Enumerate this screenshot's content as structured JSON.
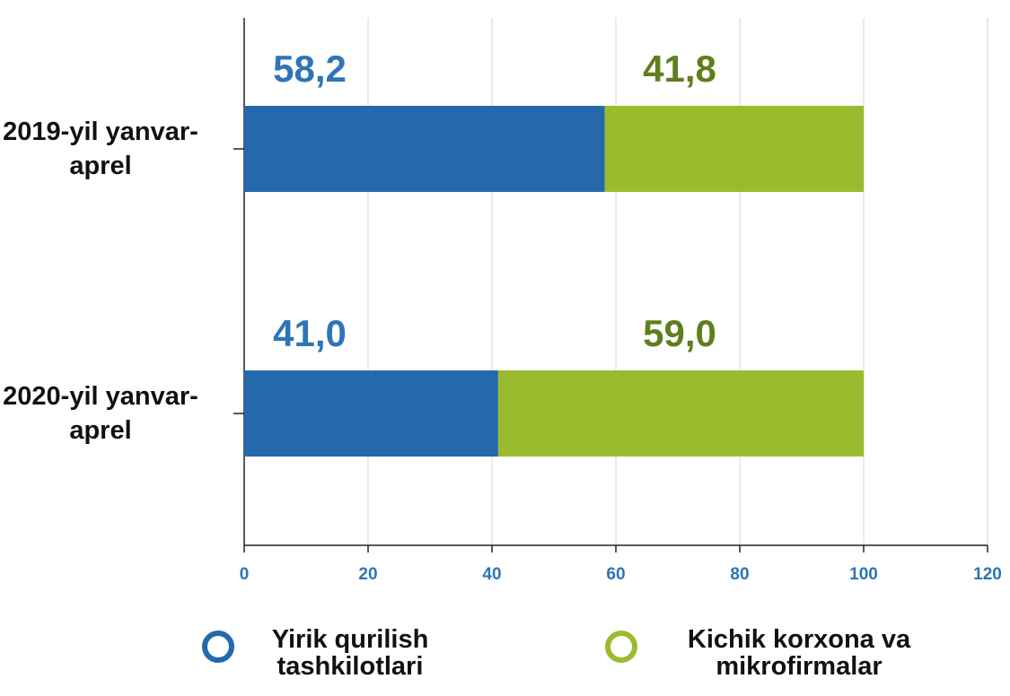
{
  "chart_data": {
    "type": "stacked-barh",
    "categories": [
      "2019-yil yanvar-aprel",
      "2020-yil yanvar-aprel"
    ],
    "series": [
      {
        "name": "Yirik qurilish tashkilotlari",
        "color": "#2369ac",
        "label_color": "#2e75b6",
        "values": [
          58.2,
          41.0
        ],
        "value_labels": [
          "58,2",
          "41,0"
        ]
      },
      {
        "name": "Kichik korxona va mikrofirmalar",
        "color": "#9bbb2e",
        "label_color": "#5f7f1e",
        "values": [
          41.8,
          59.0
        ],
        "value_labels": [
          "41,8",
          "59,0"
        ]
      }
    ],
    "xlim": [
      0,
      120
    ],
    "xticks": [
      0,
      20,
      40,
      60,
      80,
      100,
      120
    ],
    "grid": true
  }
}
